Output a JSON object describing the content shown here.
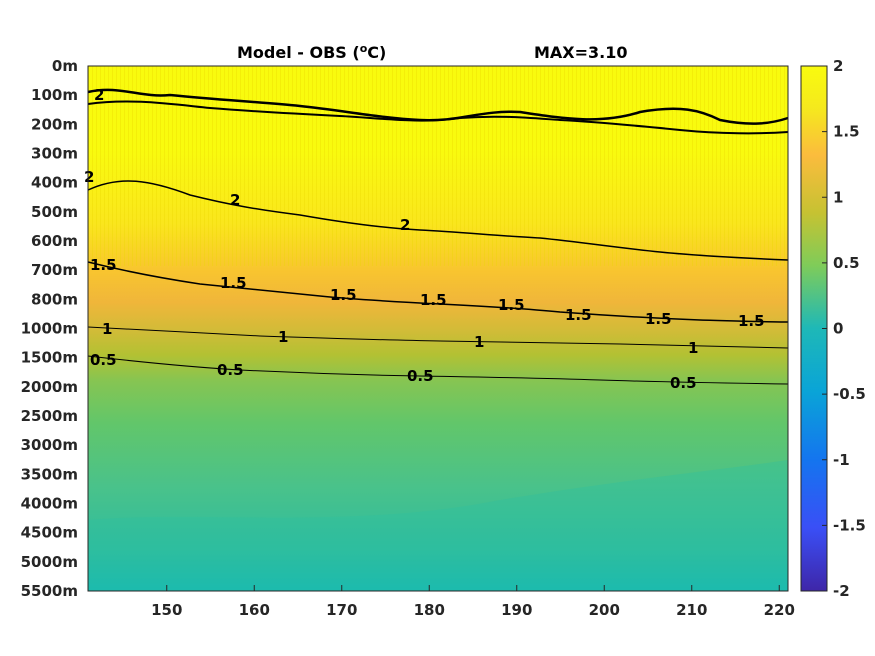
{
  "chart_data": {
    "type": "heatmap",
    "title_left": "Model - OBS (",
    "title_degree": "o",
    "title_unit": "C)",
    "title_right": "MAX=3.10",
    "x_ticks": [
      "150",
      "160",
      "170",
      "180",
      "190",
      "200",
      "210",
      "220"
    ],
    "x_tick_values": [
      150,
      160,
      170,
      180,
      190,
      200,
      210,
      220
    ],
    "xlim": [
      141,
      221
    ],
    "y_ticks": [
      "0m",
      "100m",
      "200m",
      "300m",
      "400m",
      "500m",
      "600m",
      "700m",
      "800m",
      "1000m",
      "1500m",
      "2000m",
      "2500m",
      "3000m",
      "3500m",
      "4000m",
      "4500m",
      "5000m",
      "5500m"
    ],
    "colorbar": {
      "ticks": [
        "2",
        "1.5",
        "1",
        "0.5",
        "0",
        "-0.5",
        "-1",
        "-1.5",
        "-2"
      ],
      "tick_values": [
        2,
        1.5,
        1,
        0.5,
        0,
        -0.5,
        -1,
        -1.5,
        -2
      ],
      "range": [
        -2,
        2
      ],
      "colormap": "parula"
    },
    "contours": [
      {
        "level": 2,
        "labels": [
          "2",
          "2",
          "2",
          "2"
        ]
      },
      {
        "level": 1.5,
        "labels": [
          "1.5",
          "1.5",
          "1.5",
          "1.5",
          "1.5",
          "1.5",
          "1.5",
          "1.5"
        ]
      },
      {
        "level": 1,
        "labels": [
          "1",
          "1",
          "1",
          "1"
        ]
      },
      {
        "level": 0.5,
        "labels": [
          "0.5",
          "0.5",
          "0.5",
          "0.5"
        ]
      }
    ],
    "max_value": 3.1
  }
}
